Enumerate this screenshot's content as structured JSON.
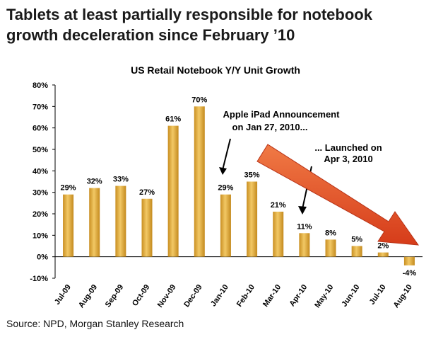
{
  "headline_line1": "Tablets at least partially responsible for notebook",
  "headline_line2": "growth deceleration since February ’10",
  "source": "Source: NPD, Morgan Stanley Research",
  "chart_data": {
    "type": "bar",
    "title": "US Retail Notebook Y/Y Unit Growth",
    "xlabel": "",
    "ylabel": "",
    "categories": [
      "Jul-09",
      "Aug-09",
      "Sep-09",
      "Oct-09",
      "Nov-09",
      "Dec-09",
      "Jan-10",
      "Feb-10",
      "Mar-10",
      "Apr-10",
      "May-10",
      "Jun-10",
      "Jul-10",
      "Aug-10"
    ],
    "values": [
      29,
      32,
      33,
      27,
      61,
      70,
      29,
      35,
      21,
      11,
      8,
      5,
      2,
      -4
    ],
    "data_labels": [
      "29%",
      "32%",
      "33%",
      "27%",
      "61%",
      "70%",
      "29%",
      "35%",
      "21%",
      "11%",
      "8%",
      "5%",
      "2%",
      "-4%"
    ],
    "ylim": [
      -10,
      80
    ],
    "yticks": [
      -10,
      0,
      10,
      20,
      30,
      40,
      50,
      60,
      70,
      80
    ],
    "ytick_labels": [
      "-10%",
      "0%",
      "10%",
      "20%",
      "30%",
      "40%",
      "50%",
      "60%",
      "70%",
      "80%"
    ],
    "grid": false,
    "bar_color": "#e2ac3f",
    "annotations": [
      {
        "lines": [
          "Apple iPad Announcement",
          "on Jan 27, 2010..."
        ]
      },
      {
        "lines": [
          "... Launched on",
          "Apr 3, 2010"
        ]
      }
    ],
    "trend_arrow_color": "#e8502a"
  }
}
